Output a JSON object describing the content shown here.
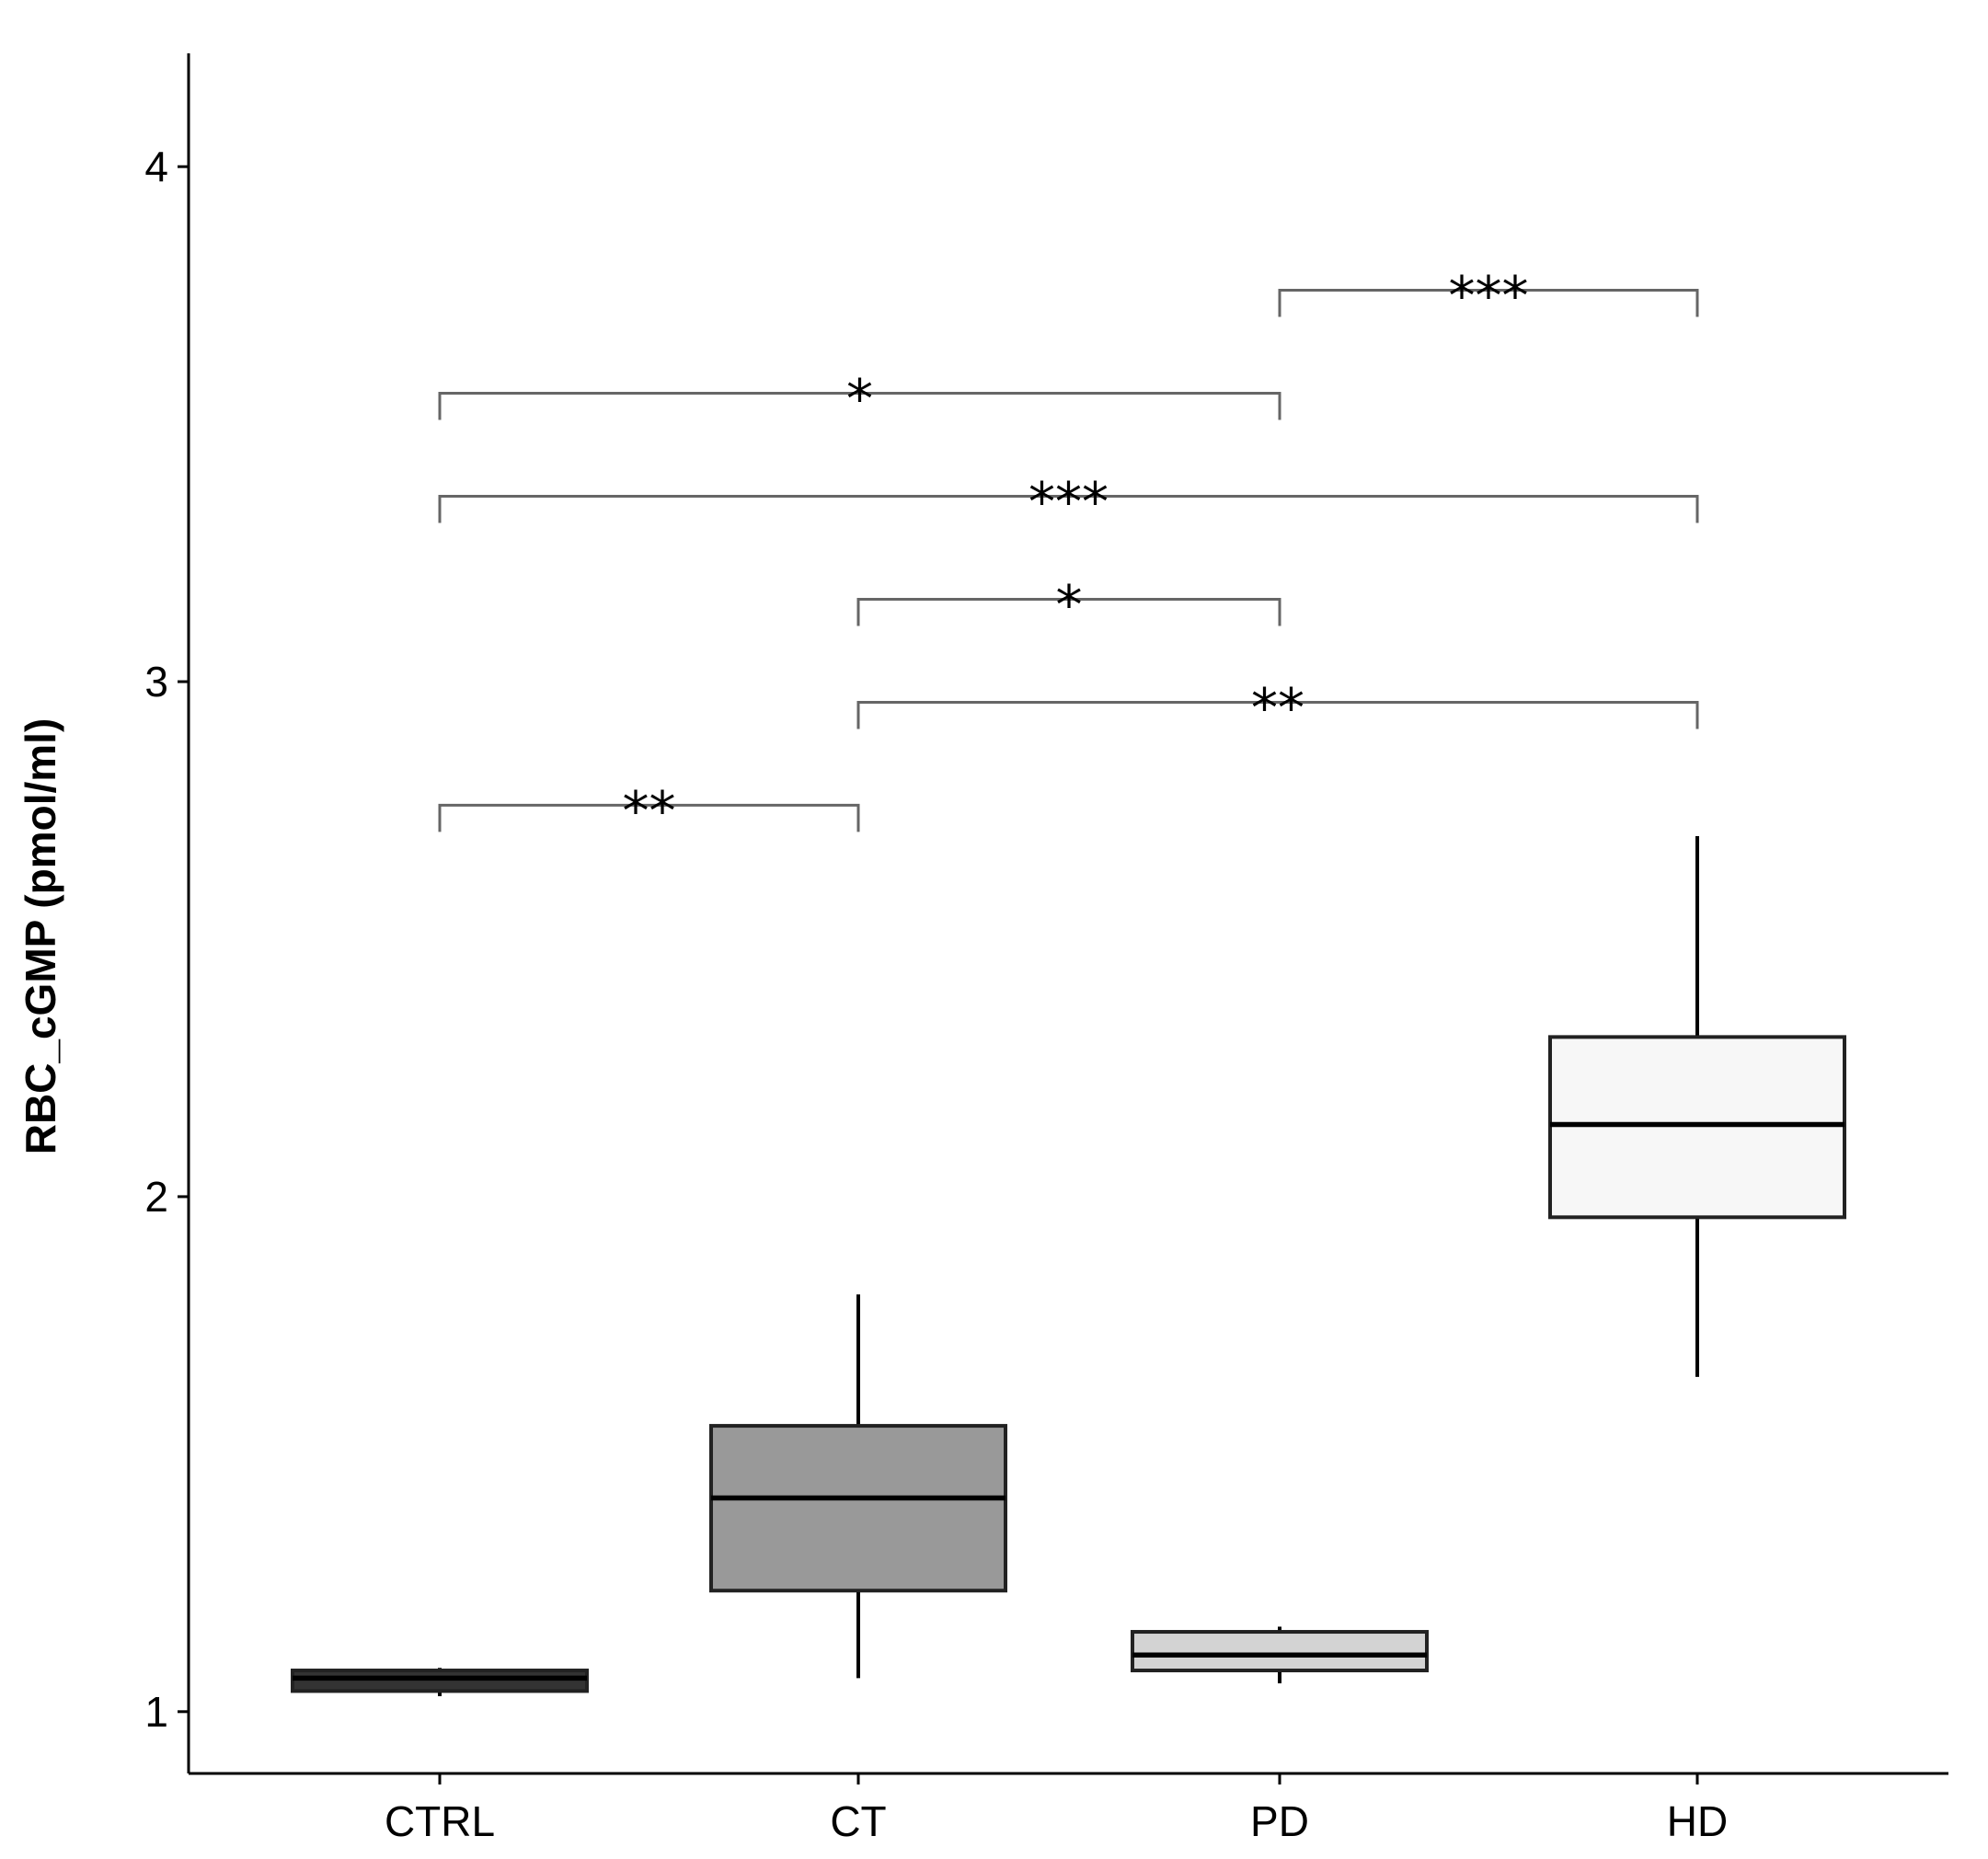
{
  "chart_data": {
    "type": "box",
    "title": "",
    "xlabel": "",
    "ylabel": "RBC_cGMP (pmol/ml)",
    "ylim": [
      0.88,
      4.22
    ],
    "yticks": [
      1,
      2,
      3,
      4
    ],
    "ytick_labels": [
      "1",
      "2",
      "3",
      "4"
    ],
    "grid": false,
    "legend": "none",
    "categories": [
      "CTRL",
      "CT",
      "PD",
      "HD"
    ],
    "boxes": [
      {
        "category": "CTRL",
        "whisker_low": 1.03,
        "q1": 1.04,
        "median": 1.065,
        "q3": 1.08,
        "whisker_high": 1.085,
        "fill": "#333333"
      },
      {
        "category": "CT",
        "whisker_low": 1.065,
        "q1": 1.235,
        "median": 1.415,
        "q3": 1.555,
        "whisker_high": 1.81,
        "fill": "#999999"
      },
      {
        "category": "PD",
        "whisker_low": 1.055,
        "q1": 1.08,
        "median": 1.11,
        "q3": 1.155,
        "whisker_high": 1.165,
        "fill": "#d3d3d3"
      },
      {
        "category": "HD",
        "whisker_low": 1.65,
        "q1": 1.96,
        "median": 2.14,
        "q3": 2.31,
        "whisker_high": 2.7,
        "fill": "#f7f7f7"
      }
    ],
    "significance": [
      {
        "from": "PD",
        "to": "HD",
        "y": 3.76,
        "label": "***"
      },
      {
        "from": "CTRL",
        "to": "PD",
        "y": 3.56,
        "label": "*"
      },
      {
        "from": "CTRL",
        "to": "HD",
        "y": 3.36,
        "label": "***"
      },
      {
        "from": "CT",
        "to": "PD",
        "y": 3.16,
        "label": "*"
      },
      {
        "from": "CT",
        "to": "HD",
        "y": 2.96,
        "label": "**"
      },
      {
        "from": "CTRL",
        "to": "CT",
        "y": 2.76,
        "label": "**"
      }
    ]
  }
}
